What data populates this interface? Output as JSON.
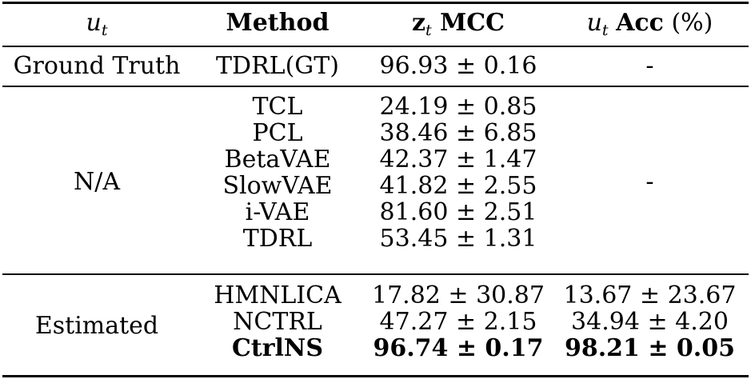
{
  "header": {
    "ut_symbol": "u",
    "ut_subscript": "t",
    "method": "Method",
    "mcc_symbol": "z",
    "mcc_subscript": "t",
    "mcc_text": "MCC",
    "acc_symbol": "u",
    "acc_subscript": "t",
    "acc_text": "Acc",
    "acc_unit": "(%)"
  },
  "groups": [
    {
      "ut": "Ground Truth",
      "acc_placeholder": "-",
      "rows": [
        {
          "method": "TDRL(GT)",
          "mcc": "96.93 ± 0.16"
        }
      ]
    },
    {
      "ut": "N/A",
      "acc_placeholder": "-",
      "rows": [
        {
          "method": "TCL",
          "mcc": "24.19 ± 0.85"
        },
        {
          "method": "PCL",
          "mcc": "38.46 ± 6.85"
        },
        {
          "method": "BetaVAE",
          "mcc": "42.37 ± 1.47"
        },
        {
          "method": "SlowVAE",
          "mcc": "41.82 ± 2.55"
        },
        {
          "method": "i-VAE",
          "mcc": "81.60 ± 2.51"
        },
        {
          "method": "TDRL",
          "mcc": "53.45 ± 1.31"
        }
      ]
    },
    {
      "ut": "Estimated",
      "rows": [
        {
          "method": "HMNLICA",
          "mcc": "17.82 ± 30.87",
          "acc": "13.67 ± 23.67"
        },
        {
          "method": "NCTRL",
          "mcc": "47.27 ± 2.15",
          "acc": "34.94 ± 4.20"
        },
        {
          "method": "CtrlNS",
          "mcc": "96.74 ± 0.17",
          "acc": "98.21 ± 0.05",
          "bold": true
        }
      ]
    }
  ]
}
